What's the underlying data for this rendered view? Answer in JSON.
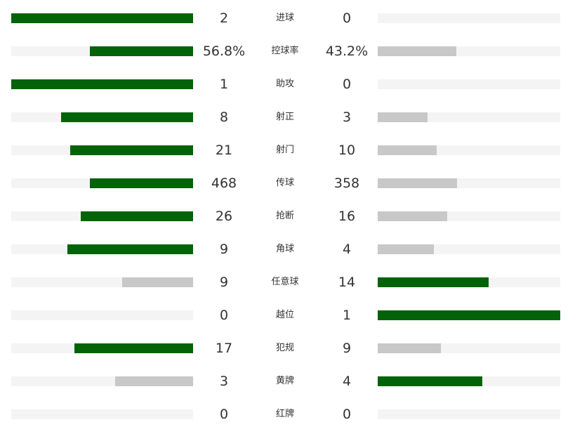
{
  "colors": {
    "winner": "#036309",
    "loser": "#c8c8c8",
    "track": "#f4f4f4"
  },
  "stats": [
    {
      "label": "进球",
      "home": "2",
      "away": "0",
      "home_value": 2,
      "away_value": 0
    },
    {
      "label": "控球率",
      "home": "56.8%",
      "away": "43.2%",
      "home_value": 56.8,
      "away_value": 43.2
    },
    {
      "label": "助攻",
      "home": "1",
      "away": "0",
      "home_value": 1,
      "away_value": 0
    },
    {
      "label": "射正",
      "home": "8",
      "away": "3",
      "home_value": 8,
      "away_value": 3
    },
    {
      "label": "射门",
      "home": "21",
      "away": "10",
      "home_value": 21,
      "away_value": 10
    },
    {
      "label": "传球",
      "home": "468",
      "away": "358",
      "home_value": 468,
      "away_value": 358
    },
    {
      "label": "抢断",
      "home": "26",
      "away": "16",
      "home_value": 26,
      "away_value": 16
    },
    {
      "label": "角球",
      "home": "9",
      "away": "4",
      "home_value": 9,
      "away_value": 4
    },
    {
      "label": "任意球",
      "home": "9",
      "away": "14",
      "home_value": 9,
      "away_value": 14
    },
    {
      "label": "越位",
      "home": "0",
      "away": "1",
      "home_value": 0,
      "away_value": 1
    },
    {
      "label": "犯规",
      "home": "17",
      "away": "9",
      "home_value": 17,
      "away_value": 9
    },
    {
      "label": "黄牌",
      "home": "3",
      "away": "4",
      "home_value": 3,
      "away_value": 4
    },
    {
      "label": "红牌",
      "home": "0",
      "away": "0",
      "home_value": 0,
      "away_value": 0
    }
  ]
}
